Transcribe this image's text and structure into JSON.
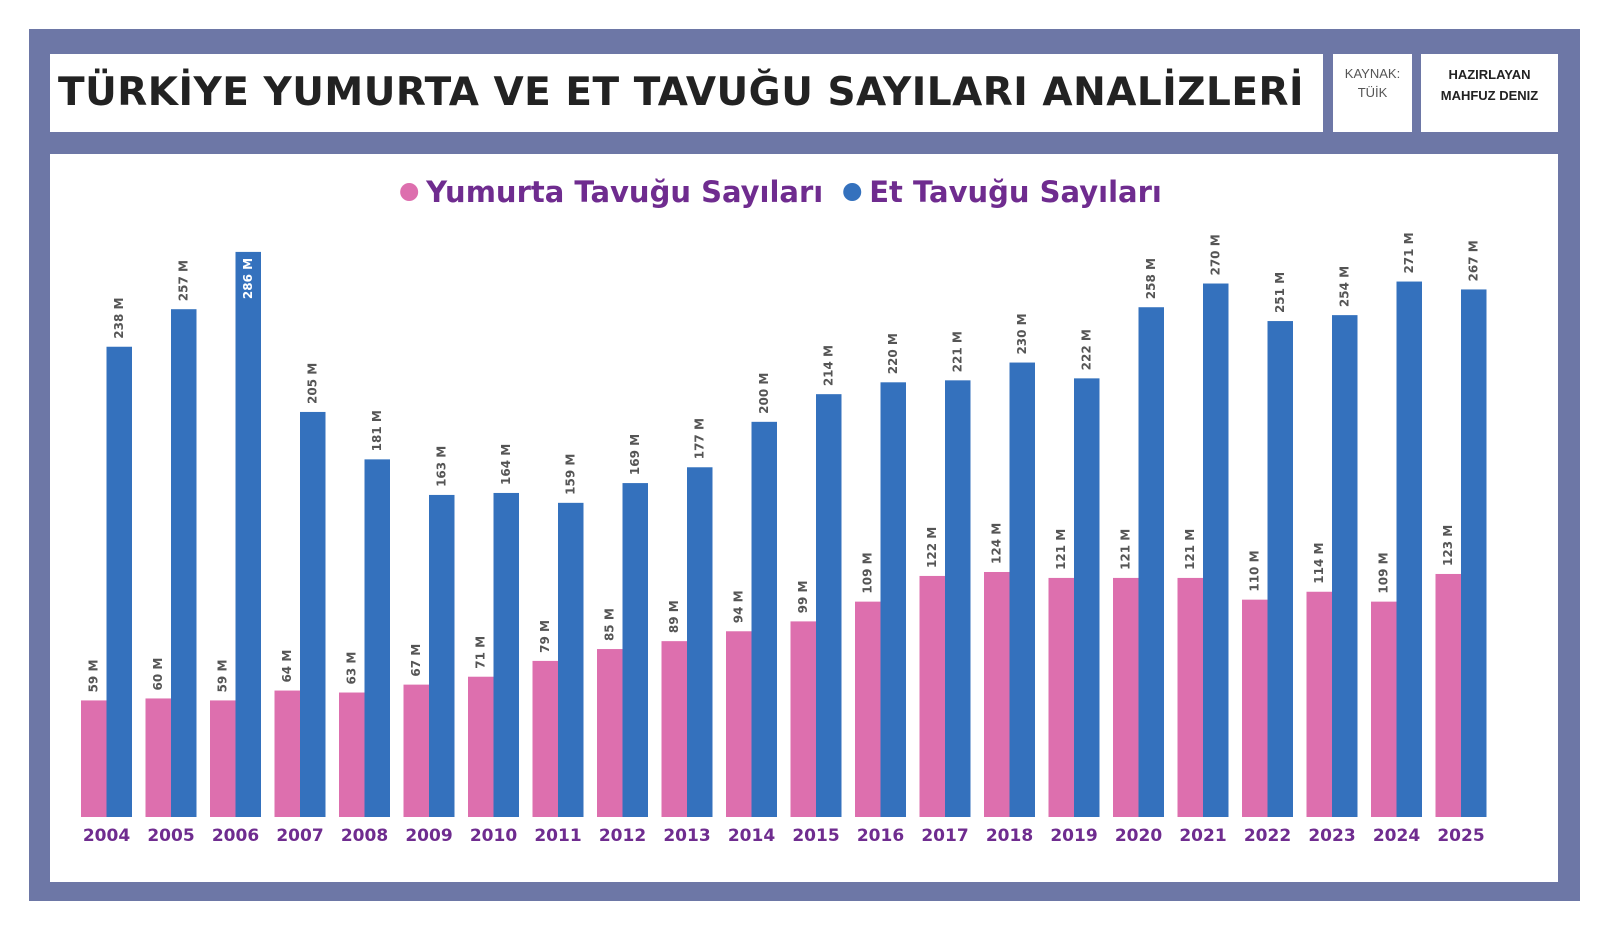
{
  "header": {
    "title": "TÜRKİYE YUMURTA VE ET TAVUĞU SAYILARI ANALİZLERİ",
    "source_label": "KAYNAK:",
    "source_value": "TÜİK",
    "author_label": "HAZIRLAYAN",
    "author_value": "MAHFUZ DENIZ"
  },
  "chart_data": {
    "type": "bar",
    "categories": [
      "2004",
      "2005",
      "2006",
      "2007",
      "2008",
      "2009",
      "2010",
      "2011",
      "2012",
      "2013",
      "2014",
      "2015",
      "2016",
      "2017",
      "2018",
      "2019",
      "2020",
      "2021",
      "2022",
      "2023",
      "2024",
      "2025"
    ],
    "series": [
      {
        "name": "Yumurta Tavuğu Sayıları",
        "color": "#dd6fae",
        "values": [
          59,
          60,
          59,
          64,
          63,
          67,
          71,
          79,
          85,
          89,
          94,
          99,
          109,
          122,
          124,
          121,
          121,
          121,
          110,
          114,
          109,
          123
        ]
      },
      {
        "name": "Et Tavuğu Sayıları",
        "color": "#3471bd",
        "values": [
          238,
          257,
          286,
          205,
          181,
          163,
          164,
          159,
          169,
          177,
          200,
          214,
          220,
          221,
          230,
          222,
          258,
          270,
          251,
          254,
          271,
          267
        ]
      }
    ],
    "value_suffix": " M",
    "ylim": [
      0,
      290
    ],
    "legend_position": "top",
    "grid": false
  }
}
